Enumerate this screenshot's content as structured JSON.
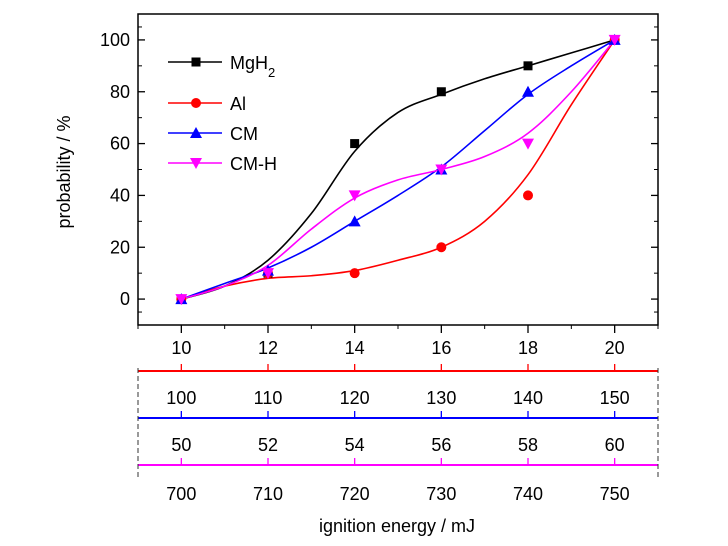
{
  "chart_data": {
    "type": "scatter",
    "xlabel": "ignition energy / mJ",
    "ylabel": "probability / %",
    "xlim": [
      9,
      21
    ],
    "ylim": [
      -10,
      110
    ],
    "x_ticks": [
      10,
      12,
      14,
      16,
      18,
      20
    ],
    "y_ticks": [
      0,
      20,
      40,
      60,
      80,
      100
    ],
    "grid": false,
    "legend_position": "top-left",
    "extra_x_axes": [
      {
        "color": "#ff0000",
        "labels": [
          "100",
          "110",
          "120",
          "130",
          "140",
          "150"
        ]
      },
      {
        "color": "#0000ff",
        "labels": [
          "50",
          "52",
          "54",
          "56",
          "58",
          "60"
        ]
      },
      {
        "color": "#ff00ff",
        "labels": [
          "700",
          "710",
          "720",
          "730",
          "740",
          "750"
        ]
      }
    ],
    "series": [
      {
        "name": "MgH2",
        "color": "#000000",
        "marker": "square",
        "x": [
          10,
          12,
          14,
          16,
          18,
          20
        ],
        "y": [
          0,
          10,
          60,
          80,
          90,
          100
        ],
        "fit_curve": [
          [
            10,
            0
          ],
          [
            11,
            5
          ],
          [
            12,
            15
          ],
          [
            13,
            33
          ],
          [
            14,
            57
          ],
          [
            15,
            72
          ],
          [
            16,
            79
          ],
          [
            17,
            85
          ],
          [
            18,
            90
          ],
          [
            19,
            95
          ],
          [
            20,
            100
          ]
        ]
      },
      {
        "name": "Al",
        "color": "#ff0000",
        "marker": "circle",
        "x": [
          10,
          12,
          14,
          16,
          18,
          20
        ],
        "y": [
          0,
          10,
          10,
          20,
          40,
          100
        ],
        "fit_curve": [
          [
            10,
            0
          ],
          [
            11,
            5
          ],
          [
            12,
            8
          ],
          [
            13,
            9
          ],
          [
            14,
            11
          ],
          [
            15,
            15
          ],
          [
            16,
            20
          ],
          [
            17,
            30
          ],
          [
            18,
            48
          ],
          [
            19,
            75
          ],
          [
            20,
            100
          ]
        ]
      },
      {
        "name": "CM",
        "color": "#0000ff",
        "marker": "triangle-up",
        "x": [
          10,
          12,
          14,
          16,
          18,
          20
        ],
        "y": [
          0,
          11,
          30,
          50,
          80,
          100
        ],
        "fit_curve": [
          [
            10,
            0
          ],
          [
            11,
            6
          ],
          [
            12,
            12
          ],
          [
            13,
            20
          ],
          [
            14,
            30
          ],
          [
            15,
            40
          ],
          [
            16,
            51
          ],
          [
            17,
            65
          ],
          [
            18,
            79
          ],
          [
            19,
            90
          ],
          [
            20,
            100
          ]
        ]
      },
      {
        "name": "CM-H",
        "color": "#ff00ff",
        "marker": "triangle-down",
        "x": [
          10,
          12,
          14,
          16,
          18,
          20
        ],
        "y": [
          0,
          10,
          40,
          50,
          60,
          100
        ],
        "fit_curve": [
          [
            10,
            0
          ],
          [
            11,
            5
          ],
          [
            12,
            13
          ],
          [
            13,
            27
          ],
          [
            14,
            39
          ],
          [
            15,
            46
          ],
          [
            16,
            50
          ],
          [
            17,
            55
          ],
          [
            18,
            64
          ],
          [
            19,
            80
          ],
          [
            20,
            100
          ]
        ]
      }
    ]
  }
}
